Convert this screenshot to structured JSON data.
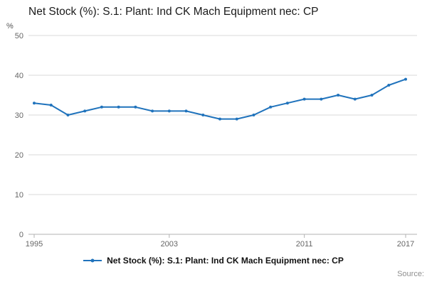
{
  "title": "Net Stock (%): S.1: Plant: Ind CK Mach Equipment nec: CP",
  "source_label": "Source:",
  "legend": {
    "label": "Net Stock (%): S.1: Plant: Ind CK Mach Equipment nec: CP"
  },
  "colors": {
    "line": "#2073bc",
    "grid": "#d9d9d9",
    "axis": "#b3b3b3",
    "tick_text": "#666666"
  },
  "chart_data": {
    "type": "line",
    "title": "Net Stock (%): S.1: Plant: Ind CK Mach Equipment nec: CP",
    "xlabel": "",
    "ylabel": "%",
    "ylim": [
      0,
      50
    ],
    "yticks": [
      0,
      10,
      20,
      30,
      40,
      50
    ],
    "xticks": [
      1995,
      2003,
      2011,
      2017
    ],
    "grid": true,
    "legend_position": "bottom",
    "x": [
      1995,
      1996,
      1997,
      1998,
      1999,
      2000,
      2001,
      2002,
      2003,
      2004,
      2005,
      2006,
      2007,
      2008,
      2009,
      2010,
      2011,
      2012,
      2013,
      2014,
      2015,
      2016,
      2017
    ],
    "values": [
      33,
      32.5,
      30,
      31,
      32,
      32,
      32,
      31,
      31,
      31,
      30,
      29,
      29,
      30,
      32,
      33,
      34,
      34,
      35,
      34,
      35,
      37.5,
      39
    ]
  }
}
